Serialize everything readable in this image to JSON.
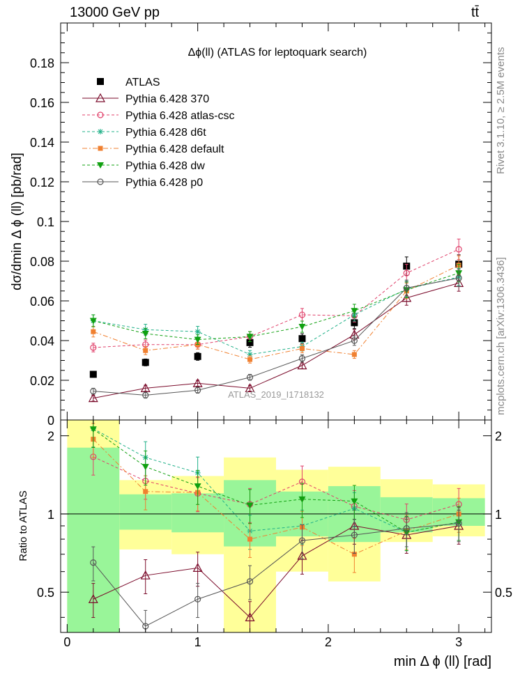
{
  "header": {
    "left": "13000 GeV pp",
    "right": "tt̄"
  },
  "side_labels": {
    "rivet": "Rivet 3.1.10, ≥ 2.5M events",
    "mcplots": "mcplots.cern.ch [arXiv:1306.3436]"
  },
  "colors": {
    "ATLAS": "#000000",
    "Pythia 6.428 370": "#7a0a2a",
    "Pythia 6.428 atlas-csc": "#e0406a",
    "Pythia 6.428 d6t": "#20b088",
    "Pythia 6.428 default": "#f08030",
    "Pythia 6.428 dw": "#10a010",
    "Pythia 6.428 p0": "#555555",
    "band_inner": "#99f599",
    "band_outer": "#ffff99"
  },
  "chart_data": [
    {
      "type": "line",
      "title": "Δϕ(ll) (ATLAS for leptoquark search)",
      "ylabel": "dσ/dmin Δ ϕ (ll) [pb/rad]",
      "xlabel": "",
      "watermark": "ATLAS_2019_I1718132",
      "xlim": [
        -0.05,
        3.25
      ],
      "ylim": [
        0,
        0.2
      ],
      "xticks": [
        0,
        1,
        2,
        3
      ],
      "yticks": [
        0,
        0.02,
        0.04,
        0.06,
        0.08,
        0.1,
        0.12,
        0.14,
        0.16,
        0.18
      ],
      "ytick_labels": [
        "0",
        "0.02",
        "0.04",
        "0.06",
        "0.08",
        "0.1",
        "0.12",
        "0.14",
        "0.16",
        "0.18"
      ],
      "bin_edges": [
        0,
        0.4,
        0.8,
        1.2,
        1.6,
        2.0,
        2.4,
        2.8,
        3.2
      ],
      "x": [
        0.2,
        0.6,
        1.0,
        1.4,
        1.8,
        2.2,
        2.6,
        3.0
      ],
      "legend_position": "top-left",
      "series": [
        {
          "name": "ATLAS",
          "marker": "square",
          "line": "none",
          "values": [
            0.023,
            0.029,
            0.032,
            0.039,
            0.041,
            0.049,
            0.0775,
            0.0785
          ]
        },
        {
          "name": "Pythia 6.428 370",
          "marker": "triangle-open",
          "line": "solid",
          "values": [
            0.011,
            0.016,
            0.0185,
            0.016,
            0.0275,
            0.043,
            0.0615,
            0.069
          ]
        },
        {
          "name": "Pythia 6.428 atlas-csc",
          "marker": "circle-open",
          "line": "dashed",
          "values": [
            0.0365,
            0.038,
            0.038,
            0.042,
            0.053,
            0.0525,
            0.074,
            0.086
          ]
        },
        {
          "name": "Pythia 6.428 d6t",
          "marker": "star",
          "line": "dashed",
          "values": [
            0.05,
            0.0455,
            0.0445,
            0.033,
            0.037,
            0.053,
            0.066,
            0.072
          ]
        },
        {
          "name": "Pythia 6.428 default",
          "marker": "square-small",
          "line": "dashdot",
          "values": [
            0.0445,
            0.035,
            0.038,
            0.0305,
            0.036,
            0.033,
            0.065,
            0.078
          ]
        },
        {
          "name": "Pythia 6.428 dw",
          "marker": "triangle-down",
          "line": "dashed",
          "values": [
            0.05,
            0.0435,
            0.0405,
            0.042,
            0.047,
            0.055,
            0.0655,
            0.074
          ]
        },
        {
          "name": "Pythia 6.428 p0",
          "marker": "circle-open",
          "line": "solid",
          "values": [
            0.0145,
            0.0125,
            0.015,
            0.0215,
            0.031,
            0.04,
            0.0665,
            0.0715
          ]
        }
      ]
    },
    {
      "type": "line",
      "title": "",
      "ylabel": "Ratio to ATLAS",
      "xlabel": "min Δ ϕ (ll) [rad]",
      "xlim": [
        -0.05,
        3.25
      ],
      "ylim": [
        0.35,
        2.3
      ],
      "xticks": [
        0,
        1,
        2,
        3
      ],
      "xtick_labels": [
        "0",
        "1",
        "2",
        "3"
      ],
      "yticks": [
        0.5,
        1,
        2
      ],
      "ytick_labels": [
        "0.5",
        "1",
        "2"
      ],
      "bin_edges": [
        0,
        0.4,
        0.8,
        1.2,
        1.6,
        2.0,
        2.4,
        2.8,
        3.2
      ],
      "x": [
        0.2,
        0.6,
        1.0,
        1.4,
        1.8,
        2.2,
        2.6,
        3.0
      ],
      "band_inner": {
        "low": [
          0.35,
          0.87,
          0.85,
          0.75,
          0.82,
          0.78,
          0.85,
          0.9
        ],
        "high": [
          1.8,
          1.19,
          1.2,
          1.35,
          1.22,
          1.28,
          1.16,
          1.15
        ]
      },
      "band_outer": {
        "low": [
          0.35,
          0.73,
          0.7,
          0.35,
          0.6,
          0.55,
          0.78,
          0.82
        ],
        "high": [
          2.3,
          1.35,
          1.4,
          1.65,
          1.48,
          1.52,
          1.36,
          1.3
        ]
      },
      "reference_line": 1,
      "series": [
        {
          "name": "Pythia 6.428 370",
          "marker": "triangle-open",
          "line": "solid",
          "values": [
            0.47,
            0.58,
            0.62,
            0.4,
            0.69,
            0.9,
            0.83,
            0.9
          ]
        },
        {
          "name": "Pythia 6.428 atlas-csc",
          "marker": "circle-open",
          "line": "dashed",
          "values": [
            1.66,
            1.34,
            1.2,
            1.09,
            1.33,
            1.07,
            0.95,
            1.09
          ]
        },
        {
          "name": "Pythia 6.428 d6t",
          "marker": "star",
          "line": "dashed",
          "values": [
            2.13,
            1.65,
            1.44,
            0.86,
            0.9,
            1.05,
            0.85,
            0.93
          ]
        },
        {
          "name": "Pythia 6.428 default",
          "marker": "square-small",
          "line": "dashdot",
          "values": [
            1.94,
            1.22,
            1.21,
            0.8,
            0.89,
            0.7,
            0.86,
            1.0
          ]
        },
        {
          "name": "Pythia 6.428 dw",
          "marker": "triangle-down",
          "line": "dashed",
          "values": [
            2.12,
            1.52,
            1.28,
            1.08,
            1.14,
            1.12,
            0.85,
            0.93
          ]
        },
        {
          "name": "Pythia 6.428 p0",
          "marker": "circle-open",
          "line": "solid",
          "values": [
            0.65,
            0.37,
            0.47,
            0.55,
            0.79,
            0.83,
            0.88,
            0.92
          ]
        }
      ]
    }
  ]
}
